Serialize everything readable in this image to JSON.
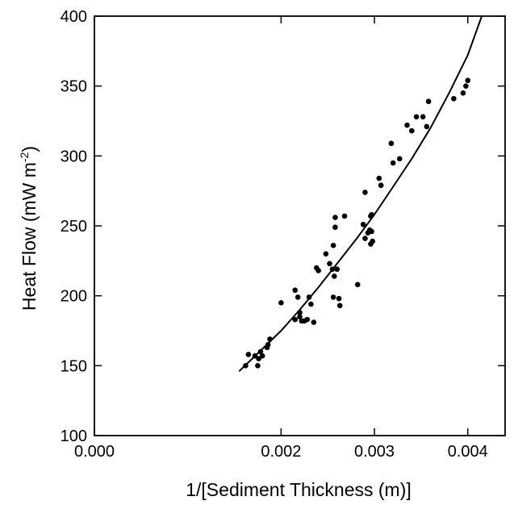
{
  "chart_data": {
    "type": "scatter",
    "xlabel": "1/[Sediment Thickness (m)]",
    "ylabel": {
      "main": "Heat Flow (mW m",
      "sup": "-2",
      "close": ")"
    },
    "xlim": [
      0.0,
      0.0044
    ],
    "ylim": [
      100,
      400
    ],
    "x_ticks": [
      0.0,
      0.002,
      0.003,
      0.004
    ],
    "x_tick_labels": [
      "0.000",
      "0.002",
      "0.003",
      "0.004"
    ],
    "y_ticks": [
      100,
      150,
      200,
      250,
      300,
      350,
      400
    ],
    "y_tick_labels": [
      "100",
      "150",
      "200",
      "250",
      "300",
      "350",
      "400"
    ],
    "grid": false,
    "legend": "none",
    "series": [
      {
        "kind": "points",
        "x": [
          0.00162,
          0.00165,
          0.00172,
          0.00175,
          0.00176,
          0.00178,
          0.0018,
          0.00185,
          0.00186,
          0.00188,
          0.002,
          0.00215,
          0.00215,
          0.00218,
          0.0022,
          0.0022,
          0.00222,
          0.00225,
          0.00228,
          0.0023,
          0.00232,
          0.00235,
          0.00238,
          0.0024,
          0.00248,
          0.00252,
          0.00255,
          0.00256,
          0.00256,
          0.00257,
          0.00258,
          0.00258,
          0.0026,
          0.00262,
          0.00263,
          0.00268,
          0.00282,
          0.00288,
          0.0029,
          0.0029,
          0.00293,
          0.00295,
          0.00296,
          0.00296,
          0.00297,
          0.00297,
          0.00298,
          0.00305,
          0.00307,
          0.00318,
          0.0032,
          0.00327,
          0.00335,
          0.0034,
          0.00345,
          0.00352,
          0.00356,
          0.00358,
          0.00385,
          0.00395,
          0.00398,
          0.004
        ],
        "y": [
          150,
          158,
          157,
          150,
          155,
          160,
          157,
          163,
          165,
          169,
          195,
          183,
          204,
          199,
          188,
          185,
          182,
          182,
          183,
          199,
          194,
          181,
          220,
          218,
          230,
          223,
          219,
          199,
          236,
          214,
          256,
          249,
          219,
          198,
          193,
          257,
          208,
          251,
          241,
          274,
          245,
          247,
          237,
          257,
          246,
          258,
          239,
          284,
          279,
          309,
          295,
          298,
          322,
          318,
          328,
          328,
          321,
          339,
          341,
          345,
          350,
          354
        ],
        "color": "#000000"
      },
      {
        "kind": "line",
        "x": [
          0.00155,
          0.0018,
          0.002,
          0.0022,
          0.0024,
          0.0026,
          0.0028,
          0.003,
          0.0032,
          0.0034,
          0.0036,
          0.0038,
          0.004,
          0.00415
        ],
        "y": [
          146,
          162,
          175,
          190,
          206,
          223,
          240,
          258,
          278,
          298,
          320,
          345,
          372,
          400
        ],
        "color": "#000000"
      }
    ]
  }
}
